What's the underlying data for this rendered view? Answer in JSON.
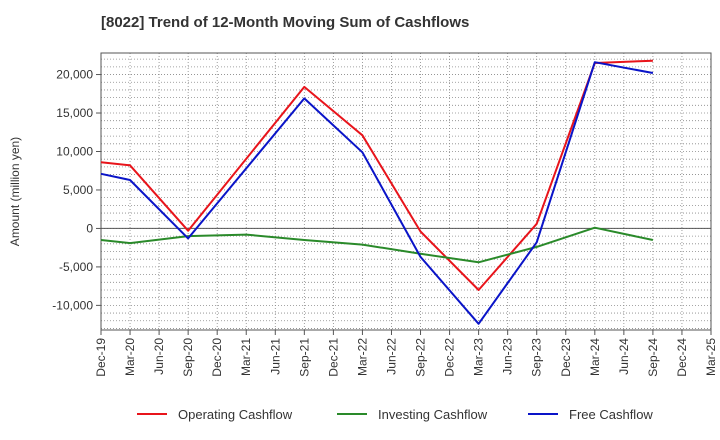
{
  "chart_data": {
    "type": "line",
    "title": "[8022]  Trend of 12-Month Moving Sum of Cashflows",
    "ylabel": "Amount (million yen)",
    "xlabel": "",
    "categories": [
      "Dec-19",
      "Mar-20",
      "Jun-20",
      "Sep-20",
      "Dec-20",
      "Mar-21",
      "Jun-21",
      "Sep-21",
      "Dec-21",
      "Mar-22",
      "Jun-22",
      "Sep-22",
      "Dec-22",
      "Mar-23",
      "Jun-23",
      "Sep-23",
      "Dec-23",
      "Mar-24",
      "Jun-24",
      "Sep-24",
      "Dec-24",
      "Mar-25"
    ],
    "ylim": [
      -13200,
      22800
    ],
    "yticks": [
      -10000,
      -5000,
      0,
      5000,
      10000,
      15000,
      20000
    ],
    "ytick_labels": [
      "-10,000",
      "-5,000",
      "0",
      "5,000",
      "10,000",
      "15,000",
      "20,000"
    ],
    "grid": true,
    "legend_position": "bottom",
    "series": [
      {
        "name": "Operating Cashflow",
        "color": "#e8141b",
        "values": [
          8600,
          8200,
          null,
          -300,
          null,
          null,
          null,
          18400,
          null,
          12100,
          null,
          -400,
          null,
          -8000,
          null,
          600,
          null,
          21500,
          null,
          21800,
          null,
          null
        ]
      },
      {
        "name": "Investing Cashflow",
        "color": "#2a8a2a",
        "values": [
          -1500,
          -1900,
          null,
          -1000,
          null,
          -800,
          null,
          -1500,
          null,
          -2100,
          null,
          -3300,
          null,
          -4400,
          null,
          -2400,
          null,
          100,
          null,
          -1500,
          null,
          null
        ]
      },
      {
        "name": "Free Cashflow",
        "color": "#0a14c8",
        "values": [
          7100,
          6300,
          null,
          -1300,
          null,
          null,
          null,
          16900,
          null,
          9900,
          null,
          -3700,
          null,
          -12400,
          null,
          -1800,
          null,
          21600,
          null,
          20200,
          null,
          null
        ]
      }
    ]
  }
}
